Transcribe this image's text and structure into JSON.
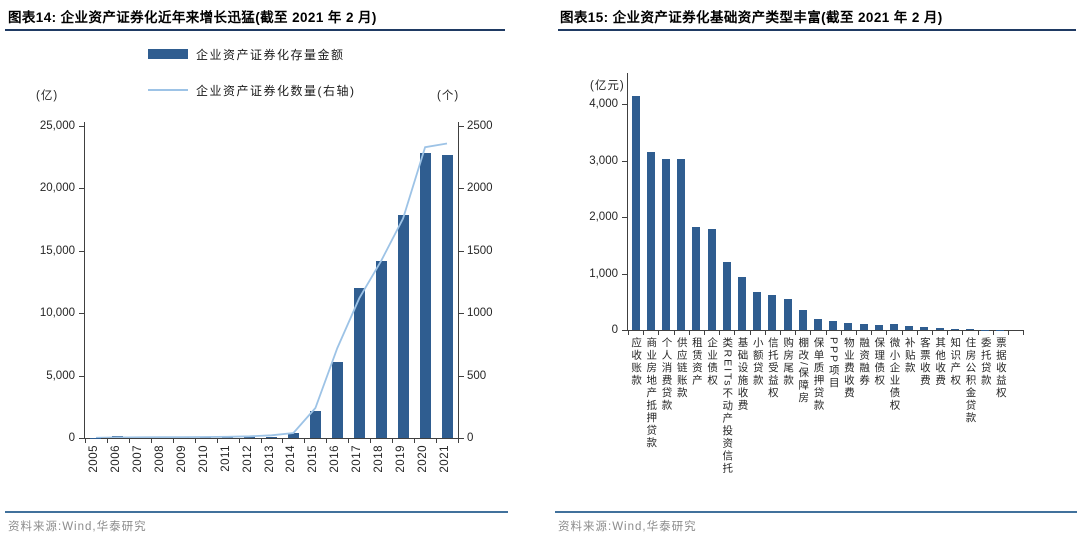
{
  "source_note": "资料来源:Wind,华泰研究",
  "colors": {
    "bar": "#2F5D90",
    "line": "#9DC3E6",
    "title_underline": "#1F3A63",
    "axis": "#404040",
    "source_divider": "#41719C",
    "source_text": "#8C8C8C"
  },
  "figure14": {
    "title": "图表14: 企业资产证券化近年来增长迅猛(截至 2021 年 2 月)",
    "legend_bar": "企业资产证券化存量金额",
    "legend_line": "企业资产证券化数量(右轴)",
    "left_axis_unit": "(亿)",
    "right_axis_unit": "(个)"
  },
  "figure15": {
    "title": "图表15: 企业资产证券化基础资产类型丰富(截至 2021 年 2 月)",
    "axis_unit": "(亿元)"
  },
  "chart_data": [
    {
      "type": "bar",
      "title": "企业资产证券化近年来增长迅猛(截至 2021 年 2 月)",
      "categories": [
        "2005",
        "2006",
        "2007",
        "2008",
        "2009",
        "2010",
        "2011",
        "2012",
        "2013",
        "2014",
        "2015",
        "2016",
        "2017",
        "2018",
        "2019",
        "2020",
        "2021"
      ],
      "series": [
        {
          "name": "企业资产证券化存量金额",
          "type": "bar",
          "axis": "left",
          "values": [
            10,
            150,
            60,
            55,
            50,
            45,
            45,
            80,
            120,
            400,
            2150,
            6100,
            12000,
            14200,
            17900,
            22850,
            22700
          ]
        },
        {
          "name": "企业资产证券化数量(右轴)",
          "type": "line",
          "axis": "right",
          "values": [
            2,
            5,
            6,
            7,
            7,
            8,
            10,
            14,
            22,
            40,
            240,
            720,
            1120,
            1420,
            1760,
            2330,
            2360
          ]
        }
      ],
      "left_axis": {
        "unit": "(亿)",
        "min": 0,
        "max": 25000,
        "tick_values": [
          0,
          5000,
          10000,
          15000,
          20000,
          25000
        ],
        "tick_labels": [
          "0",
          "5,000",
          "10,000",
          "15,000",
          "20,000",
          "25,000"
        ]
      },
      "right_axis": {
        "unit": "(个)",
        "min": 0,
        "max": 2500,
        "tick_values": [
          0,
          500,
          1000,
          1500,
          2000,
          2500
        ],
        "tick_labels": [
          "0",
          "500",
          "1000",
          "1500",
          "2000",
          "2500"
        ]
      },
      "legend_position": "top",
      "grid": false
    },
    {
      "type": "bar",
      "title": "企业资产证券化基础资产类型丰富(截至 2021 年 2 月)",
      "categories": [
        "应收账款",
        "商业房地产抵押贷款",
        "个人消费贷款",
        "供应链账款",
        "租赁资产",
        "企业债权",
        "类REITs不动产投资信托",
        "基础设施收费",
        "小额贷款",
        "信托受益权",
        "购房尾款",
        "棚改/保障房",
        "保单质押贷款",
        "PPP项目",
        "物业费收费",
        "融资融券",
        "保理债权",
        "微小企业债权",
        "补贴款",
        "客票收费",
        "其他收费",
        "知识产权",
        "住房公积金贷款",
        "委托贷款",
        "票据收益权"
      ],
      "values": [
        4150,
        3150,
        3030,
        3020,
        1830,
        1780,
        1210,
        930,
        680,
        620,
        550,
        350,
        200,
        160,
        130,
        110,
        95,
        105,
        75,
        55,
        30,
        15,
        10,
        6,
        4
      ],
      "ylabel_unit": "(亿元)",
      "y_axis": {
        "min": 0,
        "max": 4000,
        "tick_values": [
          0,
          1000,
          2000,
          3000,
          4000
        ],
        "tick_labels": [
          "0",
          "1,000",
          "2,000",
          "3,000",
          "4,000"
        ]
      },
      "grid": false
    }
  ]
}
